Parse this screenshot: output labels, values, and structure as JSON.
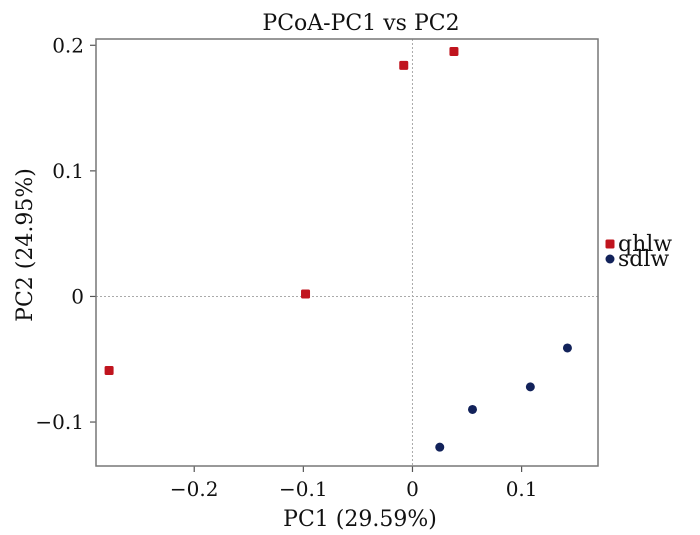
{
  "chart_data": {
    "type": "scatter",
    "title": "PCoA-PC1 vs PC2",
    "xlabel": "PC1 (29.59%)",
    "ylabel": "PC2 (24.95%)",
    "xlim": [
      -0.29,
      0.17
    ],
    "ylim": [
      -0.135,
      0.205
    ],
    "xticks": [
      -0.2,
      -0.1,
      0,
      0.1
    ],
    "xtick_labels": [
      "−0.2",
      "−0.1",
      "0",
      "0.1"
    ],
    "yticks": [
      -0.1,
      0,
      0.1,
      0.2
    ],
    "ytick_labels": [
      "−0.1",
      "0",
      "0.1",
      "0.2"
    ],
    "grid": false,
    "zero_lines": true,
    "legend_position": "right",
    "series": [
      {
        "name": "qhlw",
        "color": "#c0141e",
        "marker": "square",
        "points": [
          [
            -0.278,
            -0.059
          ],
          [
            -0.098,
            0.002
          ],
          [
            -0.008,
            0.184
          ],
          [
            0.038,
            0.195
          ]
        ]
      },
      {
        "name": "sdlw",
        "color": "#12225a",
        "marker": "circle",
        "points": [
          [
            0.025,
            -0.12
          ],
          [
            0.055,
            -0.09
          ],
          [
            0.108,
            -0.072
          ],
          [
            0.142,
            -0.041
          ]
        ]
      }
    ]
  }
}
